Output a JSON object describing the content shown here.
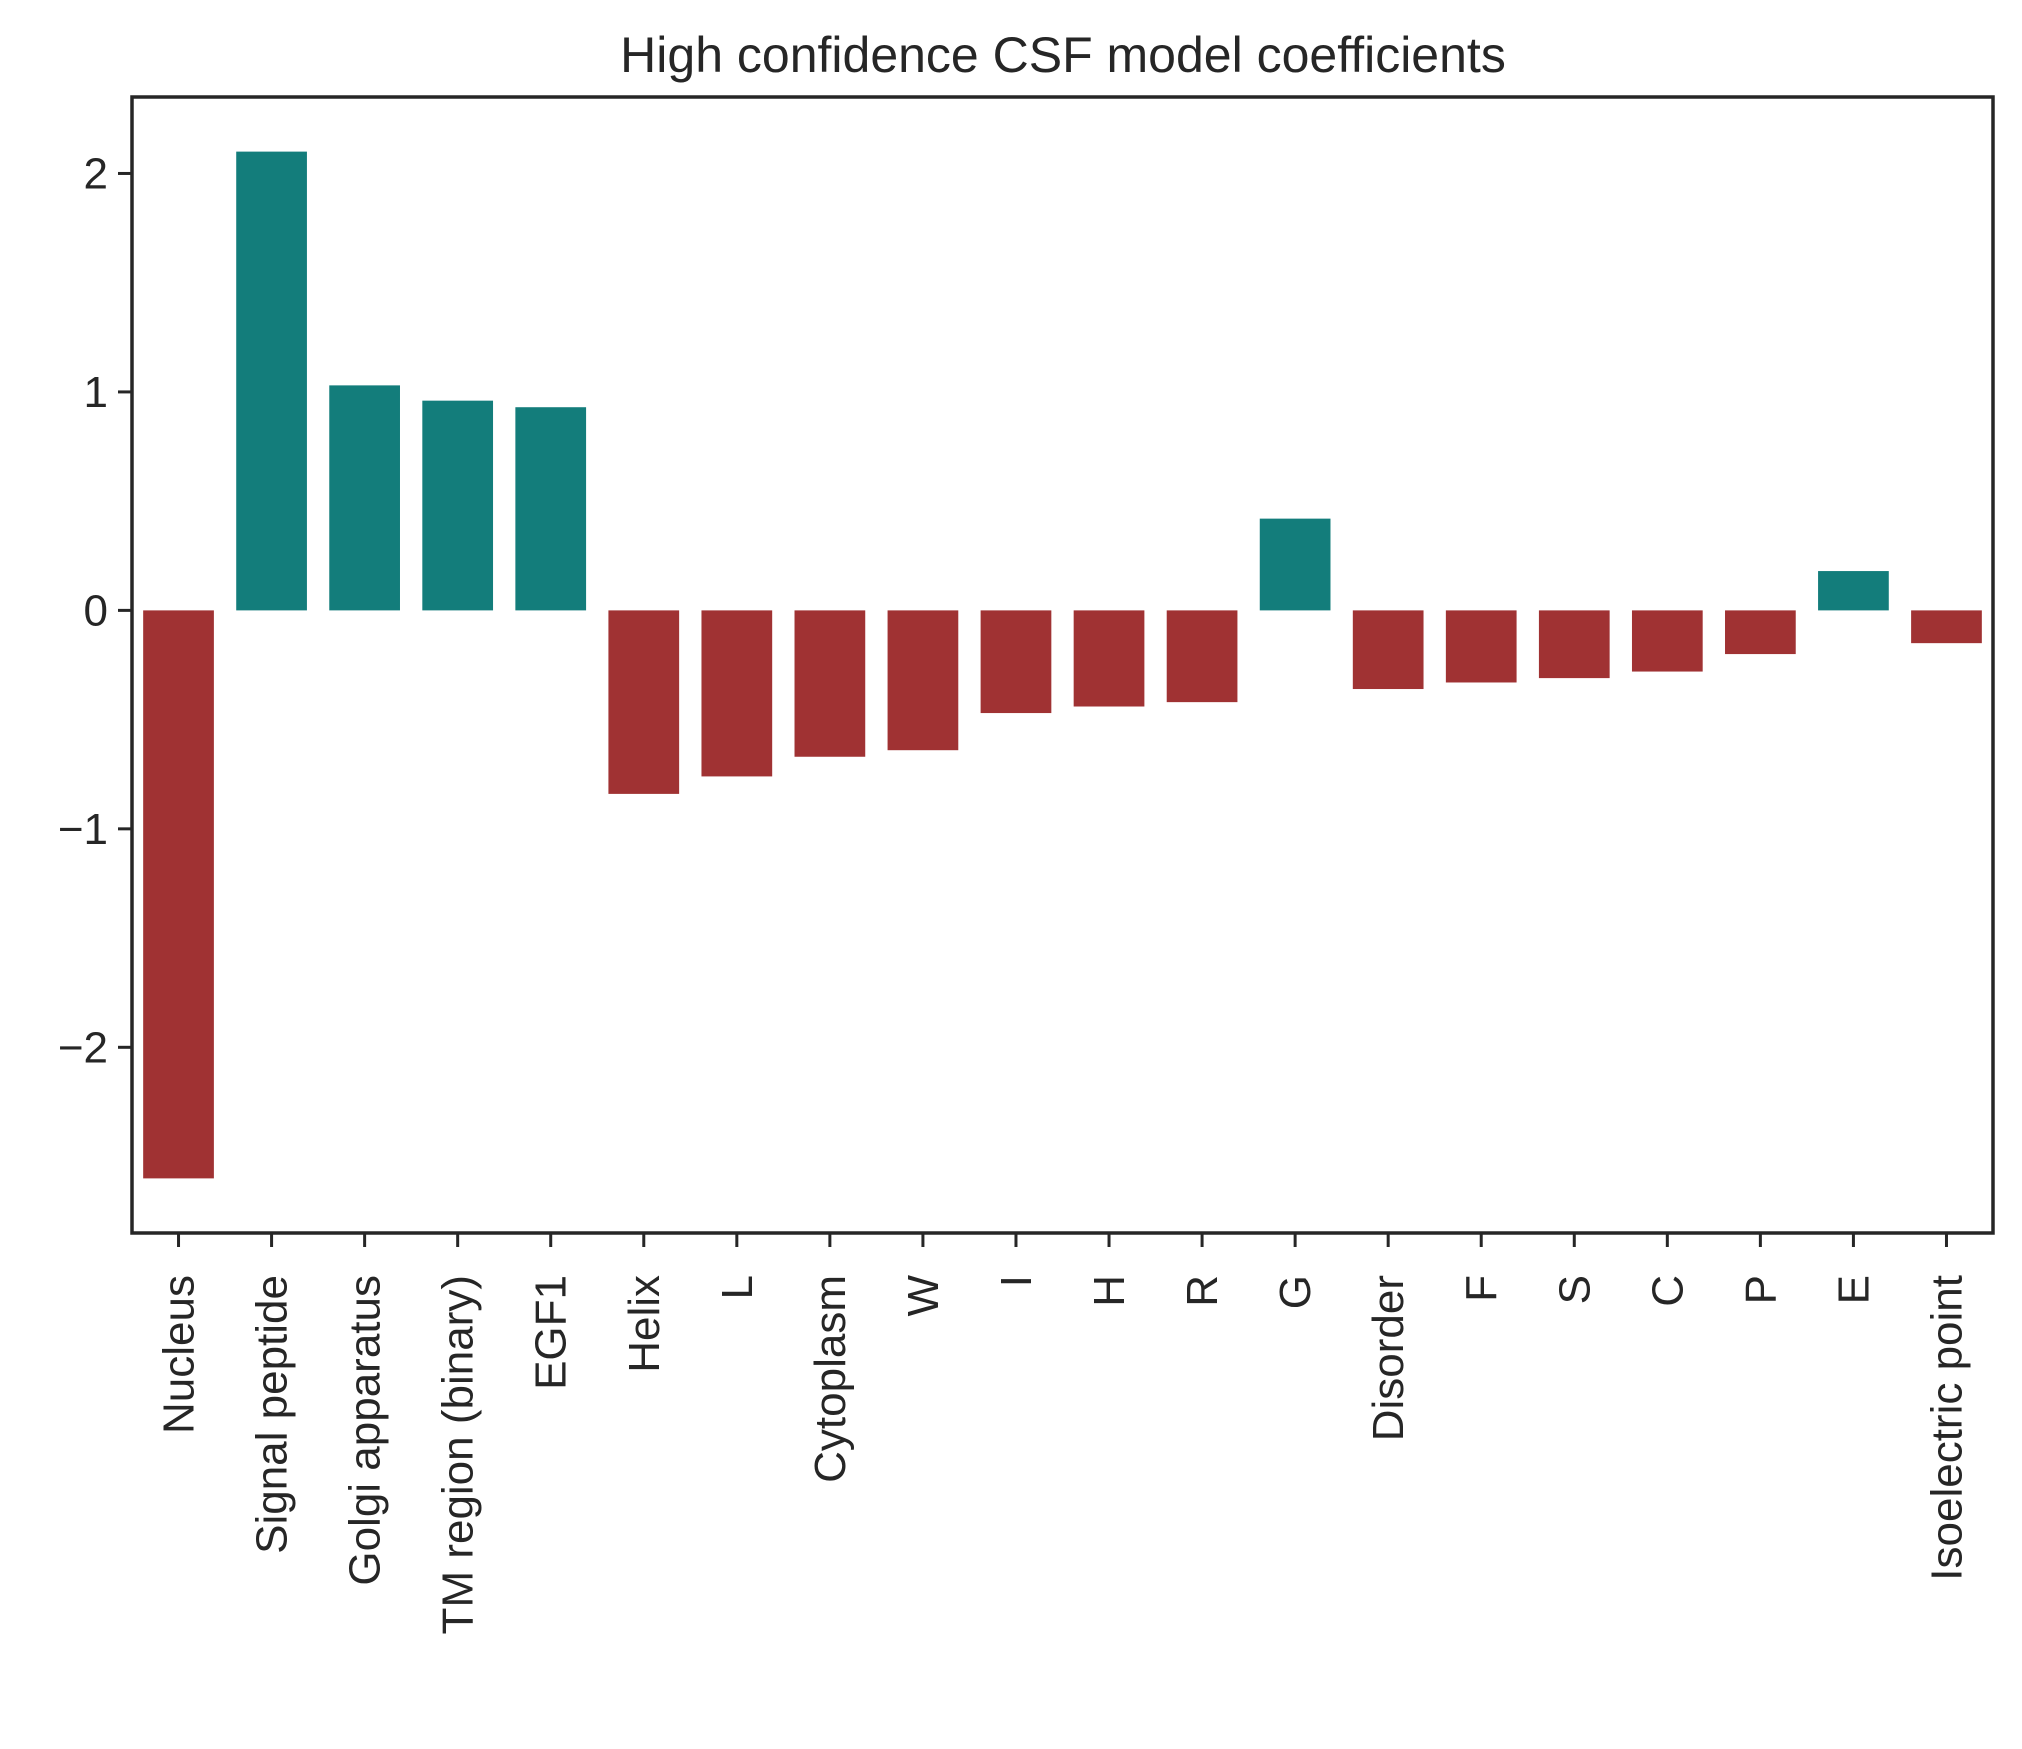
{
  "chart_data": {
    "type": "bar",
    "title": "High confidence CSF model coefficients",
    "xlabel": "",
    "ylabel": "",
    "categories": [
      "Nucleus",
      "Signal peptide",
      "Golgi apparatus",
      "TM region (binary)",
      "EGF1",
      "Helix",
      "L",
      "Cytoplasm",
      "W",
      "I",
      "H",
      "R",
      "G",
      "Disorder",
      "F",
      "S",
      "C",
      "P",
      "E",
      "Isoelectric point"
    ],
    "values": [
      -2.6,
      2.1,
      1.03,
      0.96,
      0.93,
      -0.84,
      -0.76,
      -0.67,
      -0.64,
      -0.47,
      -0.44,
      -0.42,
      0.42,
      -0.36,
      -0.33,
      -0.31,
      -0.28,
      -0.2,
      0.18,
      -0.15
    ],
    "ylim": [
      -2.85,
      2.35
    ],
    "yticks": [
      -2,
      -1,
      0,
      1,
      2
    ],
    "ytick_labels": [
      "−2",
      "−1",
      "0",
      "1",
      "2"
    ],
    "grid": false,
    "colors": {
      "positive": "#137d7b",
      "negative": "#a03233",
      "axis": "#262626"
    }
  }
}
